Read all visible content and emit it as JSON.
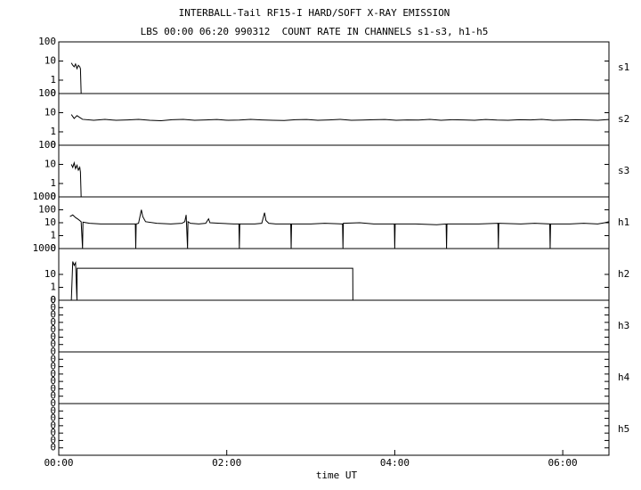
{
  "chart_data": {
    "type": "line",
    "title": "INTERBALL-Tail RF15-I HARD/SOFT X-RAY EMISSION",
    "subtitle": "LBS 00:00 06:20 990312  COUNT RATE IN CHANNELS s1-s3, h1-h5",
    "xlabel": "time UT",
    "xlim": [
      0,
      393
    ],
    "xticks": [
      {
        "value": 0,
        "label": "00:00"
      },
      {
        "value": 120,
        "label": "02:00"
      },
      {
        "value": 240,
        "label": "04:00"
      },
      {
        "value": 360,
        "label": "06:00"
      }
    ],
    "yscale": "log",
    "color": "#000000",
    "panels": [
      {
        "name": "s1",
        "ylim": [
          0.2,
          100
        ],
        "yticks": [
          0,
          1,
          10,
          100
        ],
        "x": [
          9,
          10,
          11,
          12,
          13,
          14,
          15,
          15.5,
          16
        ],
        "values": [
          8,
          6,
          5,
          7,
          4,
          6,
          5,
          4,
          0
        ]
      },
      {
        "name": "s2",
        "ylim": [
          0.2,
          100
        ],
        "yticks": [
          0,
          1,
          10,
          100
        ],
        "x": [
          9,
          11,
          13,
          17,
          25,
          33,
          41,
          49,
          57,
          65,
          73,
          81,
          89,
          97,
          105,
          113,
          121,
          129,
          137,
          145,
          153,
          161,
          169,
          177,
          185,
          193,
          201,
          209,
          217,
          225,
          233,
          241,
          249,
          257,
          265,
          273,
          281,
          289,
          297,
          305,
          313,
          321,
          329,
          337,
          345,
          353,
          361,
          369,
          377,
          385,
          393
        ],
        "values": [
          8,
          5,
          7,
          4.5,
          4,
          4.5,
          4,
          4.2,
          4.5,
          4,
          3.8,
          4.3,
          4.5,
          4,
          4.2,
          4.4,
          4,
          4.1,
          4.5,
          4.2,
          4,
          3.9,
          4.3,
          4.4,
          4,
          4.2,
          4.5,
          4,
          4.1,
          4.3,
          4.4,
          4,
          4.2,
          4.1,
          4.5,
          4,
          4.3,
          4.2,
          4,
          4.4,
          4.1,
          4,
          4.3,
          4.2,
          4.5,
          4,
          4.1,
          4.3,
          4.2,
          4,
          4.4
        ]
      },
      {
        "name": "s3",
        "ylim": [
          0.2,
          100
        ],
        "yticks": [
          0,
          1,
          10,
          100
        ],
        "x": [
          9,
          10,
          11,
          12,
          13,
          14,
          15,
          15.5,
          16
        ],
        "values": [
          10,
          7,
          12,
          6,
          9,
          5,
          7,
          4,
          0
        ]
      },
      {
        "name": "h1",
        "ylim": [
          0.1,
          1000
        ],
        "yticks": [
          0,
          1,
          10,
          100,
          1000
        ],
        "x": [
          8,
          10,
          12,
          14,
          16,
          17,
          17.3,
          22,
          30,
          40,
          50,
          54.7,
          55,
          55.3,
          57,
          59,
          60,
          62,
          70,
          80,
          88,
          90,
          91,
          92,
          92.3,
          94,
          100,
          105,
          107,
          108,
          115,
          125,
          128.7,
          129,
          129.3,
          140,
          145,
          147,
          148,
          150,
          155,
          165.7,
          166,
          166.3,
          180,
          190,
          202.7,
          203,
          203.3,
          215,
          225,
          239.7,
          240,
          240.3,
          255,
          270,
          276.7,
          277,
          277.3,
          290,
          300,
          313.7,
          314,
          314.3,
          330,
          340,
          350.7,
          351,
          351.3,
          365,
          375,
          385,
          390,
          393
        ],
        "values": [
          30,
          40,
          25,
          18,
          12,
          0,
          11,
          9,
          8,
          8,
          8,
          8,
          0,
          8,
          9,
          100,
          30,
          12,
          9,
          8,
          9,
          12,
          40,
          0,
          12,
          9,
          8,
          9,
          20,
          10,
          9,
          8,
          8,
          0,
          8,
          8,
          9,
          60,
          15,
          9,
          8,
          8,
          0,
          8,
          8,
          9,
          8,
          0,
          9,
          10,
          8,
          8,
          0,
          8,
          8,
          7,
          8,
          0,
          8,
          8,
          8,
          9,
          0,
          9,
          8,
          9,
          8,
          0,
          8,
          8,
          9,
          8,
          10,
          12
        ]
      },
      {
        "name": "h2",
        "ylim": [
          0.1,
          1000
        ],
        "yticks": [
          0,
          1,
          10,
          1000
        ],
        "x": [
          9,
          10,
          11,
          12,
          13,
          13.1,
          210,
          210.1
        ],
        "values": [
          0,
          100,
          50,
          80,
          0,
          30,
          30,
          0
        ]
      },
      {
        "name": "h3",
        "ylim": [
          1e-07,
          1
        ],
        "yticks": [
          {
            "value": 1e-06,
            "label": "0"
          },
          {
            "value": 1e-05,
            "label": "0"
          },
          {
            "value": 0.0001,
            "label": "0"
          },
          {
            "value": 0.001,
            "label": "0"
          },
          {
            "value": 0.01,
            "label": "0"
          },
          {
            "value": 0.1,
            "label": "0"
          },
          {
            "value": 1,
            "label": "0"
          }
        ]
      },
      {
        "name": "h4",
        "ylim": [
          1e-07,
          1
        ],
        "yticks": [
          {
            "value": 1e-06,
            "label": "0"
          },
          {
            "value": 1e-05,
            "label": "0"
          },
          {
            "value": 0.0001,
            "label": "0"
          },
          {
            "value": 0.001,
            "label": "0"
          },
          {
            "value": 0.01,
            "label": "0"
          },
          {
            "value": 0.1,
            "label": "0"
          },
          {
            "value": 1,
            "label": "0"
          }
        ]
      },
      {
        "name": "h5",
        "ylim": [
          1e-07,
          1
        ],
        "yticks": [
          {
            "value": 1e-06,
            "label": "0"
          },
          {
            "value": 1e-05,
            "label": "0"
          },
          {
            "value": 0.0001,
            "label": "0"
          },
          {
            "value": 0.001,
            "label": "0"
          },
          {
            "value": 0.01,
            "label": "0"
          },
          {
            "value": 0.1,
            "label": "0"
          },
          {
            "value": 1,
            "label": "0"
          }
        ]
      }
    ]
  }
}
